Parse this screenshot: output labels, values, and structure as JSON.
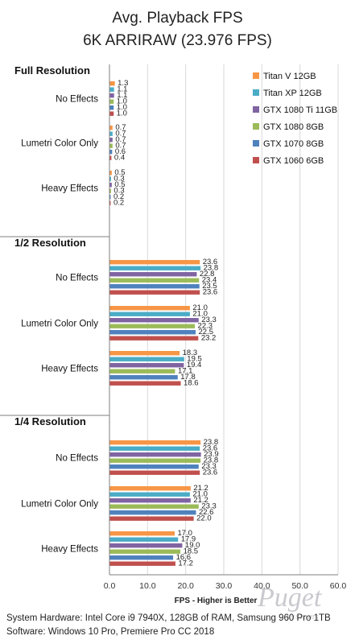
{
  "chart_data": {
    "type": "bar",
    "orientation": "horizontal",
    "title": "Avg. Playback FPS",
    "subtitle": "6K ARRIRAW (23.976 FPS)",
    "xlabel": "FPS - Higher is Better",
    "xlim": [
      0,
      60
    ],
    "xticks": [
      "0.0",
      "10.0",
      "20.0",
      "30.0",
      "40.0",
      "50.0",
      "60.0"
    ],
    "grid": true,
    "legend_position": "top-right",
    "series": [
      {
        "name": "Titan V 12GB",
        "color": "#F79646"
      },
      {
        "name": "Titan XP 12GB",
        "color": "#4BACC6"
      },
      {
        "name": "GTX 1080 Ti 11GB",
        "color": "#8064A2"
      },
      {
        "name": "GTX 1080 8GB",
        "color": "#9BBB59"
      },
      {
        "name": "GTX 1070 8GB",
        "color": "#4F81BD"
      },
      {
        "name": "GTX 1060 6GB",
        "color": "#C0504D"
      }
    ],
    "groups": [
      {
        "label": "Full Resolution",
        "categories": [
          {
            "label": "No Effects",
            "values": [
              1.3,
              1.1,
              1.1,
              1.0,
              1.0,
              1.0
            ]
          },
          {
            "label": "Lumetri Color Only",
            "values": [
              0.7,
              0.7,
              0.7,
              0.7,
              0.6,
              0.4
            ]
          },
          {
            "label": "Heavy Effects",
            "values": [
              0.5,
              0.3,
              0.5,
              0.3,
              0.2,
              0.2
            ]
          }
        ]
      },
      {
        "label": "1/2 Resolution",
        "categories": [
          {
            "label": "No Effects",
            "values": [
              23.6,
              23.8,
              22.8,
              23.4,
              23.5,
              23.6
            ]
          },
          {
            "label": "Lumetri Color Only",
            "values": [
              21.0,
              21.0,
              23.3,
              22.3,
              22.5,
              23.2
            ]
          },
          {
            "label": "Heavy Effects",
            "values": [
              18.3,
              19.5,
              19.4,
              17.1,
              17.8,
              18.6
            ]
          }
        ]
      },
      {
        "label": "1/4 Resolution",
        "categories": [
          {
            "label": "No Effects",
            "values": [
              23.8,
              23.6,
              23.9,
              23.8,
              23.3,
              23.6
            ]
          },
          {
            "label": "Lumetri Color Only",
            "values": [
              21.2,
              21.0,
              21.2,
              23.3,
              22.6,
              22.0
            ]
          },
          {
            "label": "Heavy Effects",
            "values": [
              17.0,
              17.9,
              19.0,
              18.5,
              16.6,
              17.2
            ]
          }
        ]
      }
    ]
  },
  "footer": {
    "hardware": "System Hardware: Intel Core i9 7940X, 128GB of RAM, Samsung 960 Pro 1TB",
    "software": "Software: Windows 10 Pro, Premiere Pro CC 2018"
  },
  "watermark": {
    "brand": "Puget",
    "sub": "systems"
  }
}
